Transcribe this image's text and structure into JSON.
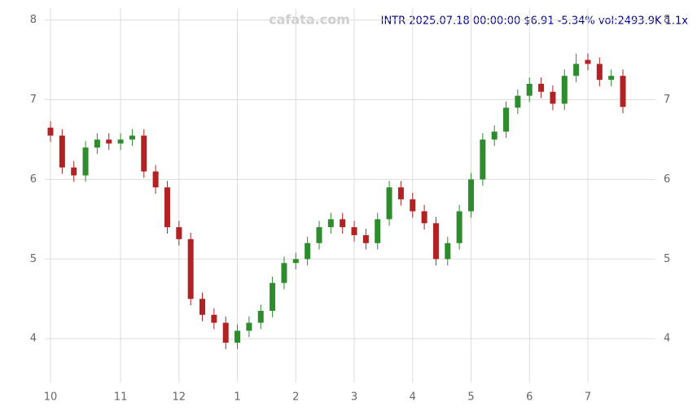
{
  "chart_data": {
    "type": "candlestick",
    "title": "INTR 2025.07.18 00:00:00 $6.91 -5.34% vol:2493.9K 1.1x",
    "watermark": "cafata.com",
    "categories": [
      "10",
      null,
      null,
      null,
      null,
      null,
      "11",
      null,
      null,
      null,
      null,
      "12",
      null,
      null,
      null,
      null,
      "1",
      null,
      null,
      null,
      null,
      "2",
      null,
      null,
      null,
      null,
      "3",
      null,
      null,
      null,
      null,
      "4",
      null,
      null,
      null,
      null,
      "5",
      null,
      null,
      null,
      null,
      "6",
      null,
      null,
      null,
      null,
      "7",
      null,
      null,
      null
    ],
    "open": [
      6.65,
      6.55,
      6.15,
      6.05,
      6.4,
      6.5,
      6.45,
      6.5,
      6.55,
      6.1,
      5.9,
      5.4,
      5.25,
      4.5,
      4.3,
      4.2,
      3.95,
      4.1,
      4.2,
      4.35,
      4.7,
      4.95,
      5.0,
      5.2,
      5.4,
      5.5,
      5.4,
      5.3,
      5.2,
      5.5,
      5.9,
      5.75,
      5.6,
      5.45,
      5.0,
      5.2,
      5.6,
      6.0,
      6.5,
      6.6,
      6.9,
      7.05,
      7.2,
      7.1,
      6.95,
      7.3,
      7.5,
      7.45,
      7.25,
      7.3
    ],
    "high": [
      6.73,
      6.63,
      6.23,
      6.48,
      6.58,
      6.58,
      6.58,
      6.63,
      6.63,
      6.18,
      5.98,
      5.48,
      5.33,
      4.58,
      4.38,
      4.28,
      4.18,
      4.28,
      4.43,
      4.78,
      5.03,
      5.08,
      5.28,
      5.48,
      5.58,
      5.58,
      5.48,
      5.38,
      5.58,
      5.98,
      5.98,
      5.83,
      5.68,
      5.53,
      5.28,
      5.68,
      6.08,
      6.58,
      6.68,
      6.98,
      7.13,
      7.28,
      7.28,
      7.18,
      7.38,
      7.58,
      7.58,
      7.53,
      7.38,
      7.38
    ],
    "low": [
      6.47,
      6.07,
      5.97,
      5.97,
      6.32,
      6.37,
      6.37,
      6.42,
      6.02,
      5.82,
      5.32,
      5.17,
      4.42,
      4.22,
      4.12,
      3.87,
      3.87,
      4.02,
      4.12,
      4.27,
      4.62,
      4.87,
      4.92,
      5.12,
      5.32,
      5.32,
      5.22,
      5.12,
      5.12,
      5.42,
      5.67,
      5.52,
      5.37,
      4.92,
      4.92,
      5.12,
      5.52,
      5.92,
      6.42,
      6.52,
      6.82,
      6.97,
      7.02,
      6.87,
      6.87,
      7.22,
      7.37,
      7.17,
      7.17,
      6.83
    ],
    "close": [
      6.55,
      6.15,
      6.05,
      6.4,
      6.5,
      6.45,
      6.5,
      6.55,
      6.1,
      5.9,
      5.4,
      5.25,
      4.5,
      4.3,
      4.2,
      3.95,
      4.1,
      4.2,
      4.35,
      4.7,
      4.95,
      5.0,
      5.2,
      5.4,
      5.5,
      5.4,
      5.3,
      5.2,
      5.5,
      5.9,
      5.75,
      5.6,
      5.45,
      5.0,
      5.2,
      5.6,
      6.0,
      6.5,
      6.6,
      6.9,
      7.05,
      7.2,
      7.1,
      6.95,
      7.3,
      7.45,
      7.45,
      7.25,
      7.3,
      6.91
    ],
    "up_color": "#2e8b2e",
    "down_color": "#b22222",
    "ylim": [
      3.45,
      8.15
    ],
    "yticks": [
      4,
      5,
      6,
      7,
      8
    ],
    "grid": true
  }
}
